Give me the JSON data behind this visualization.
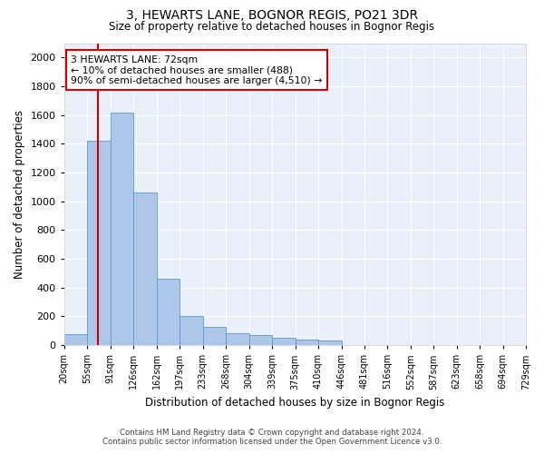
{
  "title": "3, HEWARTS LANE, BOGNOR REGIS, PO21 3DR",
  "subtitle": "Size of property relative to detached houses in Bognor Regis",
  "xlabel": "Distribution of detached houses by size in Bognor Regis",
  "ylabel": "Number of detached properties",
  "footer_line1": "Contains HM Land Registry data © Crown copyright and database right 2024.",
  "footer_line2": "Contains public sector information licensed under the Open Government Licence v3.0.",
  "property_size": 72,
  "bin_edges": [
    20,
    55,
    91,
    126,
    162,
    197,
    233,
    268,
    304,
    339,
    375,
    410,
    446,
    481,
    516,
    552,
    587,
    623,
    658,
    694,
    729
  ],
  "bar_heights": [
    75,
    1420,
    1620,
    1060,
    460,
    200,
    130,
    80,
    70,
    50,
    40,
    30,
    0,
    0,
    0,
    0,
    0,
    0,
    0,
    0
  ],
  "bar_color": "#aec6e8",
  "bar_edge_color": "#5b9bd5",
  "bg_color": "#eaf0f9",
  "grid_color": "#ffffff",
  "red_line_color": "#cc0000",
  "annotation_box_color": "#cc0000",
  "annotation_text": "3 HEWARTS LANE: 72sqm\n← 10% of detached houses are smaller (488)\n90% of semi-detached houses are larger (4,510) →",
  "ylim": [
    0,
    2100
  ],
  "yticks": [
    0,
    200,
    400,
    600,
    800,
    1000,
    1200,
    1400,
    1600,
    1800,
    2000
  ]
}
